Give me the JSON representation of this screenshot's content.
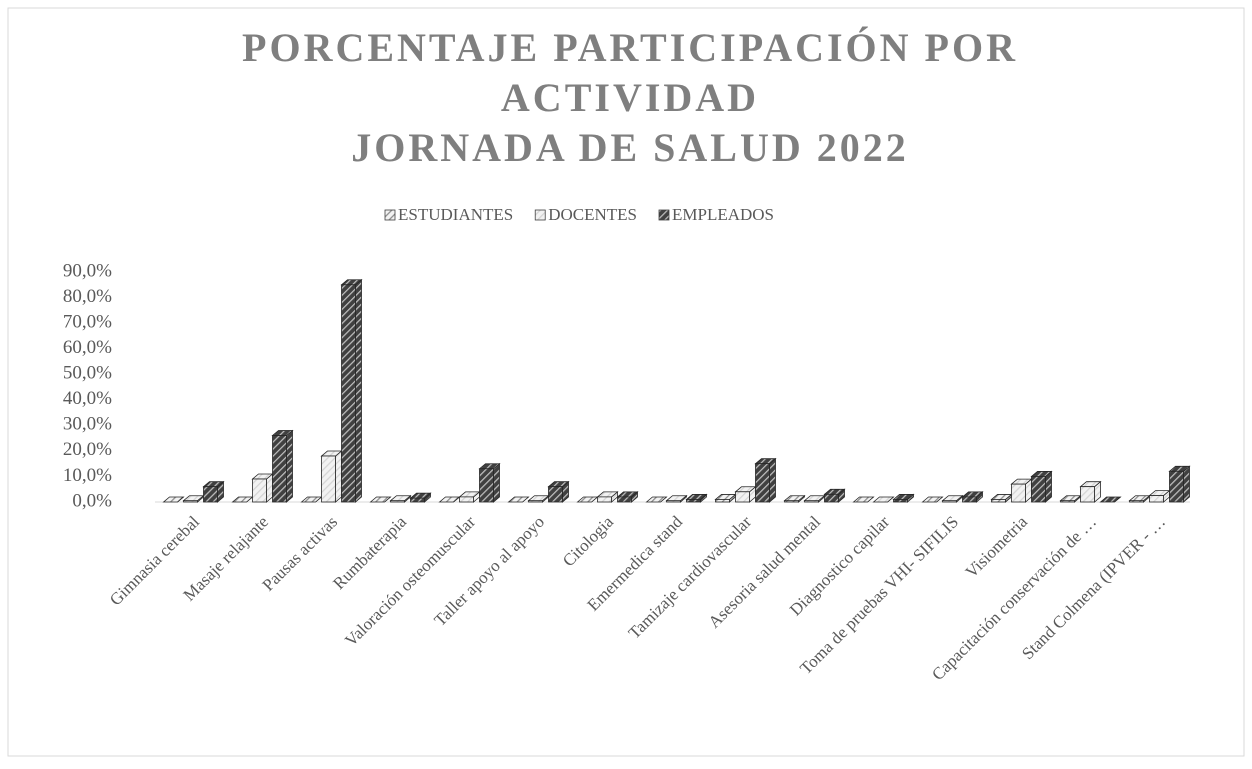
{
  "chart_data": {
    "type": "bar3d",
    "title": [
      "PORCENTAJE PARTICIPACIÓN POR",
      "ACTIVIDAD",
      "JORNADA DE SALUD 2022"
    ],
    "categories": [
      "Gimnasia cerebal",
      "Masaje relajante",
      "Pausas activas",
      "Rumbaterapia",
      "Valoración osteomuscular",
      "Taller apoyo al apoyo",
      "Citologia",
      "Emermedica stand",
      "Tamizaje cardiovascular",
      "Asesoria salud mental",
      "Diagnostico capilar",
      "Toma de pruebas VHI- SIFILIS",
      "Visiometria",
      "Capacitación conservación de …",
      "Stand Colmena (IPVER - …"
    ],
    "series": [
      {
        "name": "ESTUDIANTES",
        "color": "#8c8c8c",
        "values": [
          0,
          0,
          0,
          0,
          0,
          0,
          0,
          0,
          1,
          0.5,
          0,
          0,
          1,
          0.5,
          0.5
        ]
      },
      {
        "name": "DOCENTES",
        "color": "#d4d4d4",
        "values": [
          0.5,
          9,
          18,
          0.5,
          2,
          0.5,
          2,
          0.5,
          4,
          0.5,
          0,
          0.5,
          7,
          6,
          2.5
        ]
      },
      {
        "name": "EMPLEADOS",
        "color": "#404040",
        "values": [
          6,
          26,
          85,
          1.5,
          13,
          6,
          2,
          1,
          15,
          3,
          1,
          2,
          10,
          0,
          12
        ]
      }
    ],
    "ylim": [
      0,
      90
    ],
    "yticks": [
      {
        "value": 0,
        "label": "0,0%"
      },
      {
        "value": 10,
        "label": "10,0%"
      },
      {
        "value": 20,
        "label": "20,0%"
      },
      {
        "value": 30,
        "label": "30,0%"
      },
      {
        "value": 40,
        "label": "40,0%"
      },
      {
        "value": 50,
        "label": "50,0%"
      },
      {
        "value": 60,
        "label": "60,0%"
      },
      {
        "value": 70,
        "label": "70,0%"
      },
      {
        "value": 80,
        "label": "80,0%"
      },
      {
        "value": 90,
        "label": "90,0%"
      }
    ],
    "legend": "top"
  }
}
